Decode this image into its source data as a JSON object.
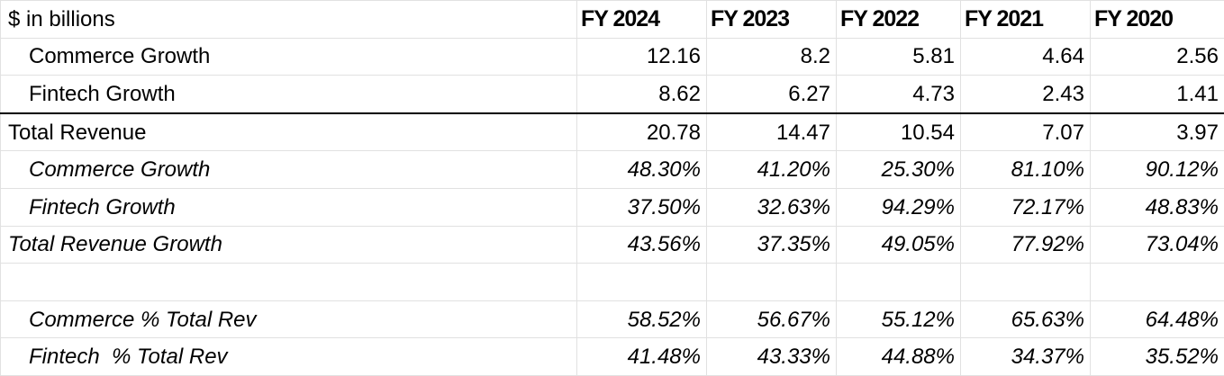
{
  "header": {
    "label": "$ in billions",
    "years": [
      "FY 2024",
      "FY 2023",
      "FY 2022",
      "FY 2021",
      "FY 2020"
    ]
  },
  "rows": [
    {
      "label": "Commerce Growth",
      "values": [
        "12.16",
        "8.2",
        "5.81",
        "4.64",
        "2.56"
      ]
    },
    {
      "label": "Fintech Growth",
      "values": [
        "8.62",
        "6.27",
        "4.73",
        "2.43",
        "1.41"
      ]
    },
    {
      "label": "Total Revenue",
      "values": [
        "20.78",
        "14.47",
        "10.54",
        "7.07",
        "3.97"
      ]
    },
    {
      "label": "Commerce Growth",
      "values": [
        "48.30%",
        "41.20%",
        "25.30%",
        "81.10%",
        "90.12%"
      ]
    },
    {
      "label": "Fintech Growth",
      "values": [
        "37.50%",
        "32.63%",
        "94.29%",
        "72.17%",
        "48.83%"
      ]
    },
    {
      "label": "Total Revenue Growth",
      "values": [
        "43.56%",
        "37.35%",
        "49.05%",
        "77.92%",
        "73.04%"
      ]
    },
    {
      "label": "Commerce % Total Rev",
      "values": [
        "58.52%",
        "56.67%",
        "55.12%",
        "65.63%",
        "64.48%"
      ]
    },
    {
      "label": "Fintech  % Total Rev",
      "values": [
        "41.48%",
        "43.33%",
        "44.88%",
        "34.37%",
        "35.52%"
      ]
    }
  ]
}
